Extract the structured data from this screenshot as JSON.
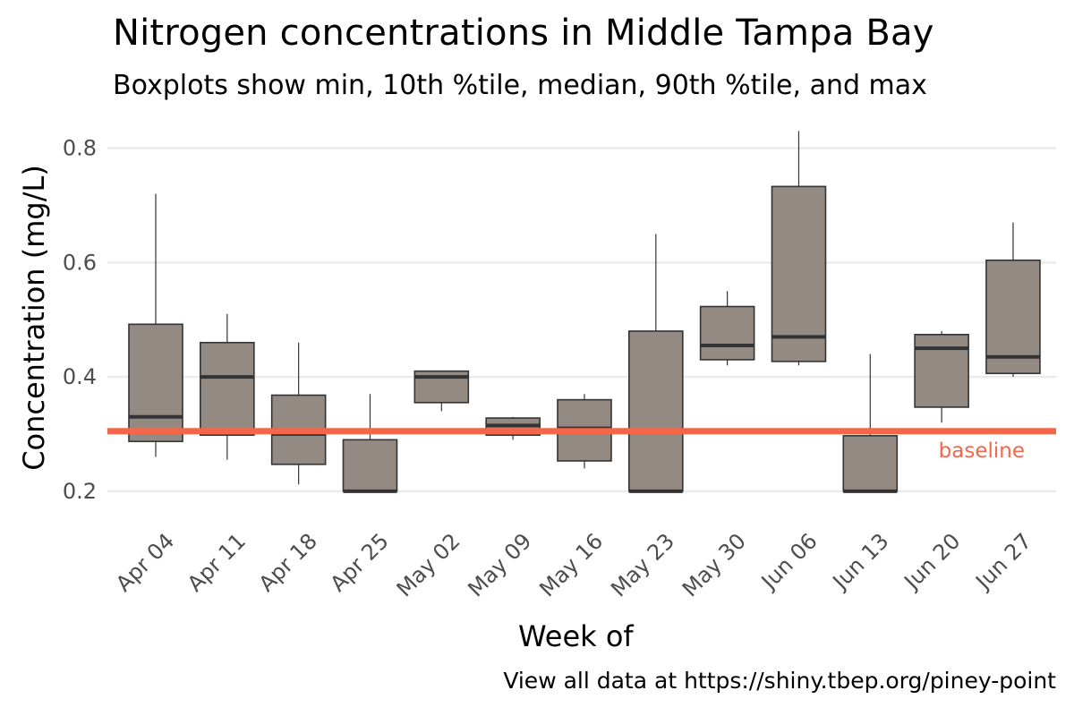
{
  "chart_data": {
    "type": "boxplot",
    "title": "Nitrogen concentrations in Middle Tampa Bay",
    "subtitle": "Boxplots show min, 10th %tile, median, 90th %tile, and max",
    "xlabel": "Week of",
    "ylabel": "Concentration (mg/L)",
    "caption": "View all data at https://shiny.tbep.org/piney-point",
    "ylim": [
      0.17,
      0.84
    ],
    "yticks": [
      0.2,
      0.4,
      0.6,
      0.8
    ],
    "ytick_labels": [
      "0.2",
      "0.4",
      "0.6",
      "0.8"
    ],
    "grid": "horizontal",
    "box_color": "#948a84",
    "box_outline_color": "#333333",
    "categories": [
      "Apr 04",
      "Apr 11",
      "Apr 18",
      "Apr 25",
      "May 02",
      "May 09",
      "May 16",
      "May 23",
      "May 30",
      "Jun 06",
      "Jun 13",
      "Jun 20",
      "Jun 27"
    ],
    "boxes": [
      {
        "min": 0.26,
        "p10": 0.287,
        "median": 0.33,
        "p90": 0.492,
        "max": 0.72
      },
      {
        "min": 0.255,
        "p10": 0.298,
        "median": 0.4,
        "p90": 0.46,
        "max": 0.51
      },
      {
        "min": 0.212,
        "p10": 0.247,
        "median": 0.3,
        "p90": 0.368,
        "max": 0.46
      },
      {
        "min": 0.2,
        "p10": 0.2,
        "median": 0.2,
        "p90": 0.29,
        "max": 0.37
      },
      {
        "min": 0.34,
        "p10": 0.355,
        "median": 0.4,
        "p90": 0.41,
        "max": 0.41
      },
      {
        "min": 0.29,
        "p10": 0.298,
        "median": 0.315,
        "p90": 0.328,
        "max": 0.33
      },
      {
        "min": 0.24,
        "p10": 0.253,
        "median": 0.31,
        "p90": 0.36,
        "max": 0.37
      },
      {
        "min": 0.2,
        "p10": 0.2,
        "median": 0.2,
        "p90": 0.48,
        "max": 0.65
      },
      {
        "min": 0.42,
        "p10": 0.43,
        "median": 0.455,
        "p90": 0.523,
        "max": 0.55
      },
      {
        "min": 0.42,
        "p10": 0.427,
        "median": 0.47,
        "p90": 0.733,
        "max": 0.83
      },
      {
        "min": 0.2,
        "p10": 0.2,
        "median": 0.2,
        "p90": 0.297,
        "max": 0.44
      },
      {
        "min": 0.32,
        "p10": 0.347,
        "median": 0.45,
        "p90": 0.474,
        "max": 0.48
      },
      {
        "min": 0.4,
        "p10": 0.406,
        "median": 0.435,
        "p90": 0.604,
        "max": 0.67
      }
    ],
    "reference_line": {
      "value": 0.305,
      "label": "baseline",
      "color": "#f4664a"
    }
  }
}
